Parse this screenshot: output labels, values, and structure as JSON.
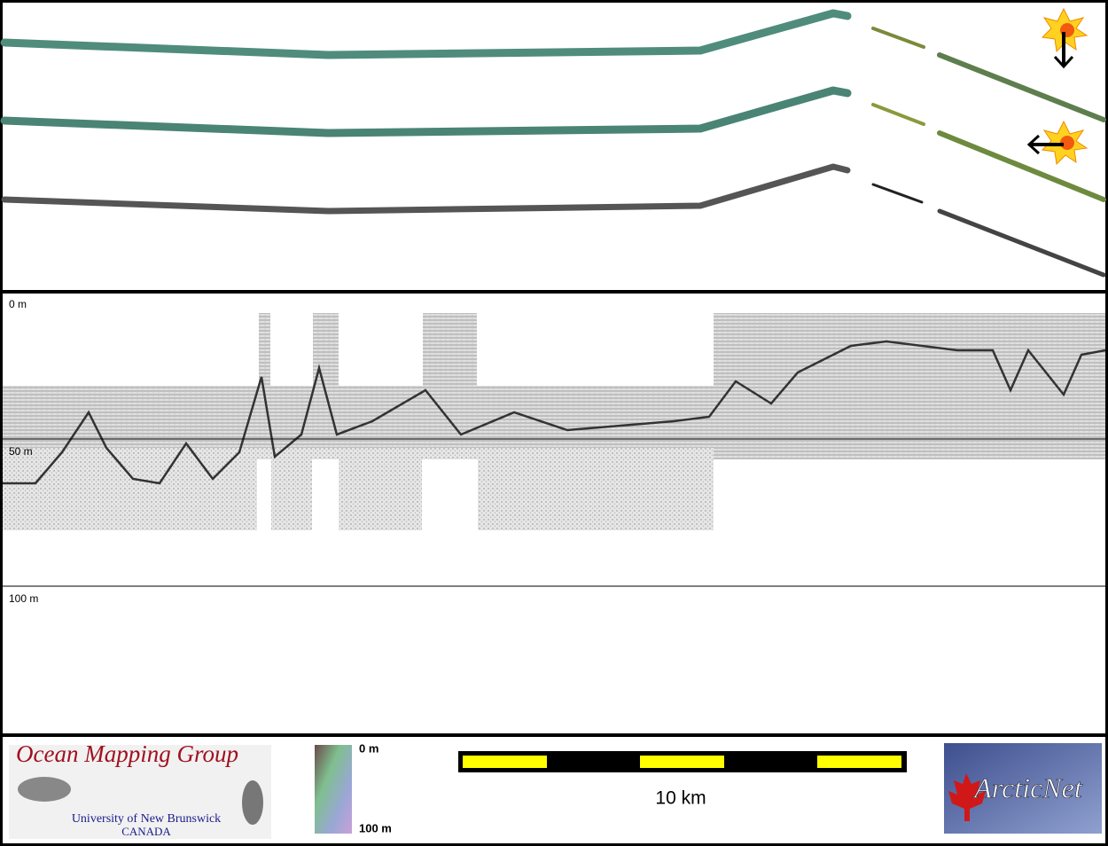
{
  "profile": {
    "depth_labels": [
      "0 m",
      "50 m",
      "100 m"
    ]
  },
  "footer": {
    "logo_left": {
      "title": "Ocean Mapping Group",
      "line1": "University of New Brunswick",
      "line2": "CANADA"
    },
    "colorbar": {
      "top": "0 m",
      "bottom": "100 m"
    },
    "scale_bar": {
      "label": "10 km"
    },
    "logo_right": {
      "text": "ArcticNet"
    }
  }
}
